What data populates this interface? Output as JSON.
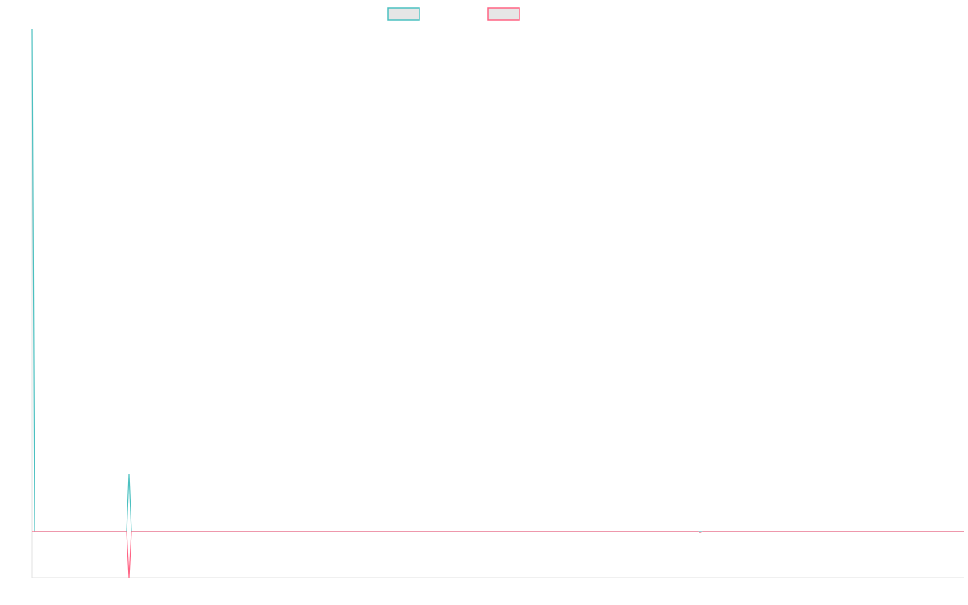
{
  "chart_data": {
    "type": "line",
    "title": "",
    "xlabel": "",
    "ylabel": "",
    "xlim": [
      0,
      385
    ],
    "ylim": [
      -9.15,
      100
    ],
    "grid": false,
    "legend": "top-center",
    "series": [
      {
        "color": "#4bc0c0",
        "points": [
          [
            0,
            100
          ],
          [
            1,
            0
          ],
          [
            39,
            0
          ],
          [
            40,
            11.4
          ],
          [
            41,
            0
          ],
          [
            385,
            0
          ]
        ]
      },
      {
        "color": "#ff6384",
        "points": [
          [
            0,
            0
          ],
          [
            39,
            0
          ],
          [
            40,
            -9.15
          ],
          [
            41,
            0
          ],
          [
            275,
            0
          ],
          [
            276,
            -0.2
          ],
          [
            277,
            0
          ],
          [
            385,
            0
          ]
        ]
      }
    ]
  }
}
